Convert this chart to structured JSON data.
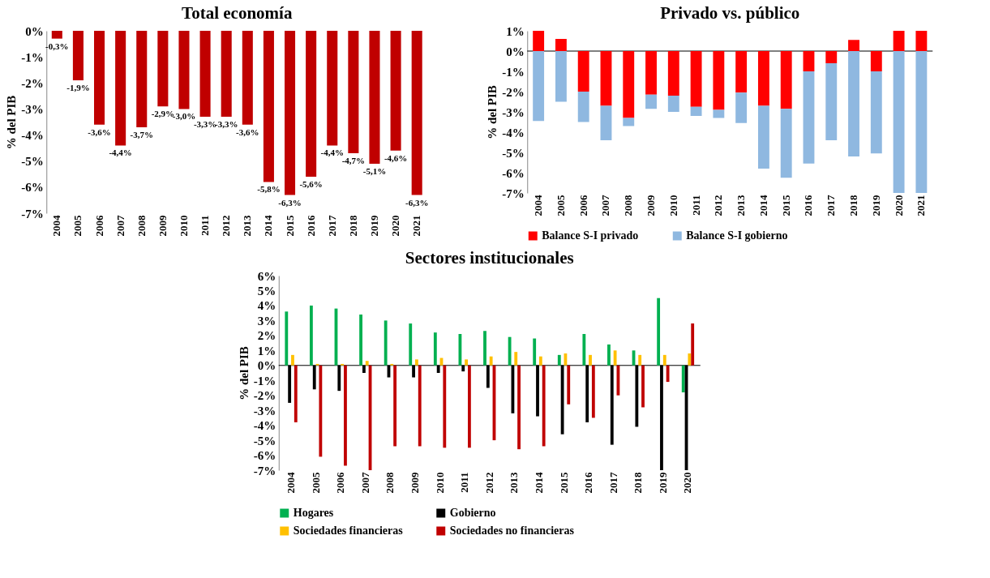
{
  "chart_data": [
    {
      "type": "bar",
      "title": "Total economía",
      "ylabel": "% del PIB",
      "categories": [
        "2004",
        "2005",
        "2006",
        "2007",
        "2008",
        "2009",
        "2010",
        "2011",
        "2012",
        "2013",
        "2014",
        "2015",
        "2016",
        "2017",
        "2018",
        "2019",
        "2020",
        "2021"
      ],
      "values": [
        -0.3,
        -1.9,
        -3.6,
        -4.4,
        -3.7,
        -2.9,
        -3.0,
        -3.3,
        -3.3,
        -3.6,
        -5.8,
        -6.3,
        -5.6,
        -4.4,
        -4.7,
        -5.1,
        -4.6,
        -6.3
      ],
      "value_labels": [
        "-0,3%",
        "-1,9%",
        "-3,6%",
        "-4,4%",
        "-3,7%",
        "-2,9%",
        "-3,0%",
        "-3,3%",
        "-3,3%",
        "-3,6%",
        "-5,8%",
        "-6,3%",
        "-5,6%",
        "-4,4%",
        "-4,7%",
        "-5,1%",
        "-4,6%",
        "-6,3%"
      ],
      "color": "#c00000",
      "ylim": [
        -7,
        0
      ],
      "yticks": [
        {
          "value": -7,
          "label": "-7%"
        },
        {
          "value": -6,
          "label": "-6%"
        },
        {
          "value": -5,
          "label": "-5%"
        },
        {
          "value": -4,
          "label": "-4%"
        },
        {
          "value": -3,
          "label": "-3%"
        },
        {
          "value": -2,
          "label": "-2%"
        },
        {
          "value": -1,
          "label": "-1%"
        },
        {
          "value": 0,
          "label": "0%"
        }
      ]
    },
    {
      "type": "bar",
      "title": "Privado vs. público",
      "ylabel": "% del PIB",
      "stacked": true,
      "legend": "bottom",
      "categories": [
        "2004",
        "2005",
        "2006",
        "2007",
        "2008",
        "2009",
        "2010",
        "2011",
        "2012",
        "2013",
        "2014",
        "2015",
        "2016",
        "2017",
        "2018",
        "2019",
        "2020",
        "2021"
      ],
      "series": [
        {
          "name": "Balance S-I privado",
          "color": "#ff0000",
          "values": [
            1.0,
            0.6,
            -2.0,
            -2.7,
            -3.3,
            -2.15,
            -2.2,
            -2.75,
            -2.9,
            -2.05,
            -2.7,
            -2.85,
            -1.0,
            -0.6,
            0.55,
            -1.0,
            1.0,
            1.0
          ]
        },
        {
          "name": "Balance S-I gobierno",
          "color": "#8fb8e0",
          "values": [
            -3.45,
            -2.5,
            -1.5,
            -1.7,
            -0.4,
            -0.7,
            -0.8,
            -0.45,
            -0.4,
            -1.5,
            -3.1,
            -3.4,
            -4.55,
            -3.8,
            -5.2,
            -4.05,
            -7.0,
            -7.0
          ]
        }
      ],
      "ylim": [
        -7,
        1
      ],
      "yticks": [
        {
          "value": -7,
          "label": "-7%"
        },
        {
          "value": -6,
          "label": "-6%"
        },
        {
          "value": -5,
          "label": "-5%"
        },
        {
          "value": -4,
          "label": "-4%"
        },
        {
          "value": -3,
          "label": "-3%"
        },
        {
          "value": -2,
          "label": "-2%"
        },
        {
          "value": -1,
          "label": "-1%"
        },
        {
          "value": 0,
          "label": "0%"
        },
        {
          "value": 1,
          "label": "1%"
        }
      ]
    },
    {
      "type": "bar",
      "title": "Sectores institucionales",
      "ylabel": "% del PIB",
      "legend": "bottom",
      "categories": [
        "2004",
        "2005",
        "2006",
        "2007",
        "2008",
        "2009",
        "2010",
        "2011",
        "2012",
        "2013",
        "2014",
        "2015",
        "2016",
        "2017",
        "2018",
        "2019",
        "2020"
      ],
      "series": [
        {
          "name": "Hogares",
          "color": "#00b050",
          "values": [
            3.6,
            4.0,
            3.8,
            3.4,
            3.0,
            2.8,
            2.2,
            2.1,
            2.3,
            1.9,
            1.8,
            0.7,
            2.1,
            1.4,
            1.0,
            4.5,
            -1.8
          ]
        },
        {
          "name": "Gobierno",
          "color": "#000000",
          "values": [
            -2.5,
            -1.6,
            -1.7,
            -0.5,
            -0.8,
            -0.8,
            -0.5,
            -0.4,
            -1.5,
            -3.2,
            -3.4,
            -4.6,
            -3.8,
            -5.3,
            -4.1,
            -7.0,
            -7.0
          ]
        },
        {
          "name": "Sociedades financieras",
          "color": "#ffc000",
          "values": [
            0.7,
            0.1,
            0.1,
            0.3,
            0.1,
            0.4,
            0.5,
            0.4,
            0.6,
            0.9,
            0.6,
            0.8,
            0.7,
            1.0,
            0.7,
            0.7,
            0.8
          ]
        },
        {
          "name": "Sociedades no financieras",
          "color": "#c00000",
          "values": [
            -3.8,
            -6.1,
            -6.7,
            -7.0,
            -5.4,
            -5.4,
            -5.5,
            -5.5,
            -5.0,
            -5.6,
            -5.4,
            -2.6,
            -3.5,
            -2.0,
            -2.8,
            -1.1,
            2.8
          ]
        }
      ],
      "ylim": [
        -7,
        6
      ],
      "yticks": [
        {
          "value": -7,
          "label": "-7%"
        },
        {
          "value": -6,
          "label": "-6%"
        },
        {
          "value": -5,
          "label": "-5%"
        },
        {
          "value": -4,
          "label": "-4%"
        },
        {
          "value": -3,
          "label": "-3%"
        },
        {
          "value": -2,
          "label": "-2%"
        },
        {
          "value": -1,
          "label": "-1%"
        },
        {
          "value": 0,
          "label": "0%"
        },
        {
          "value": 1,
          "label": "1%"
        },
        {
          "value": 2,
          "label": "2%"
        },
        {
          "value": 3,
          "label": "3%"
        },
        {
          "value": 4,
          "label": "4%"
        },
        {
          "value": 5,
          "label": "5%"
        },
        {
          "value": 6,
          "label": "6%"
        }
      ]
    }
  ]
}
